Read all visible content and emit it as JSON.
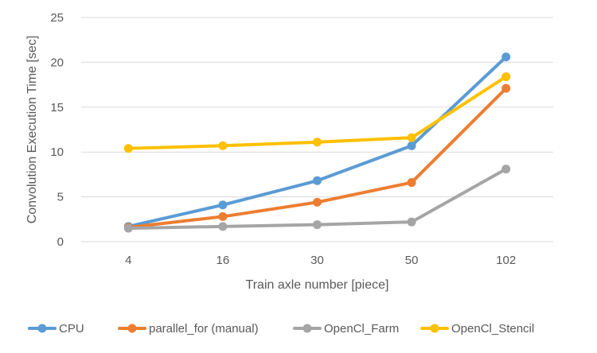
{
  "chart_data": {
    "type": "line",
    "title": "",
    "xlabel": "Train axle number [piece]",
    "ylabel": "Convolution Execution Time [sec]",
    "categories": [
      "4",
      "16",
      "30",
      "50",
      "102"
    ],
    "ylim": [
      0,
      25
    ],
    "yticks": [
      0,
      5,
      10,
      15,
      20,
      25
    ],
    "grid": true,
    "legend_position": "bottom",
    "series": [
      {
        "name": "CPU",
        "color": "#5B9BD5",
        "values": [
          1.7,
          4.1,
          6.8,
          10.7,
          20.6
        ]
      },
      {
        "name": "parallel_for (manual)",
        "color": "#ED7D31",
        "values": [
          1.6,
          2.8,
          4.4,
          6.6,
          17.1
        ]
      },
      {
        "name": "OpenCl_Farm",
        "color": "#A5A5A5",
        "values": [
          1.5,
          1.7,
          1.9,
          2.2,
          8.1
        ]
      },
      {
        "name": "OpenCl_Stencil",
        "color": "#FFC000",
        "values": [
          10.4,
          10.7,
          11.1,
          11.6,
          18.4
        ]
      }
    ]
  }
}
